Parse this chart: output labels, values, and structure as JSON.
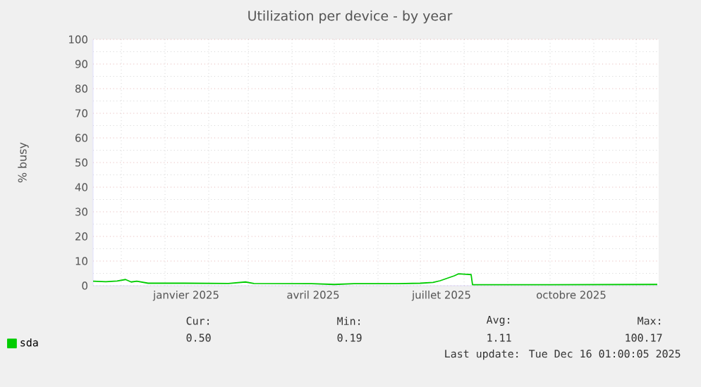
{
  "chart_data": {
    "type": "line",
    "title": "Utilization per device - by year",
    "ylabel": "% busy",
    "x": [
      "2024-11-11",
      "2024-11-20",
      "2024-11-28",
      "2024-12-04",
      "2024-12-08",
      "2024-12-12",
      "2024-12-20",
      "2025-01-15",
      "2025-02-15",
      "2025-02-27",
      "2025-03-05",
      "2025-04-15",
      "2025-05-01",
      "2025-05-15",
      "2025-06-15",
      "2025-07-01",
      "2025-07-10",
      "2025-07-15",
      "2025-07-20",
      "2025-07-25",
      "2025-07-28",
      "2025-08-03",
      "2025-08-06",
      "2025-08-07",
      "2025-10-01",
      "2025-12-16"
    ],
    "series": [
      {
        "name": "sda",
        "color": "#00cc00",
        "values": [
          1.8,
          1.6,
          1.9,
          2.5,
          1.5,
          1.8,
          1.0,
          1.0,
          0.9,
          1.5,
          0.9,
          0.8,
          0.5,
          0.8,
          0.8,
          1.0,
          1.3,
          2.0,
          3.0,
          4.0,
          4.8,
          4.6,
          4.5,
          0.4,
          0.4,
          0.5
        ]
      }
    ],
    "xlim": [
      "2024-11-11",
      "2025-12-17"
    ],
    "xticks": [
      {
        "value": "2025-01-16",
        "label": "janvier 2025"
      },
      {
        "value": "2025-04-16",
        "label": "avril 2025"
      },
      {
        "value": "2025-07-16",
        "label": "juillet 2025"
      },
      {
        "value": "2025-10-16",
        "label": "octobre 2025"
      }
    ],
    "ylim": [
      0,
      100
    ],
    "yticks": [
      0,
      10,
      20,
      30,
      40,
      50,
      60,
      70,
      80,
      90,
      100
    ],
    "grid": true,
    "legend": "bottom left",
    "marker": "none",
    "line_style": "solid",
    "annotations": [
      "Cur:",
      "Min:",
      "Avg:",
      "Max:",
      "0.50",
      "0.19",
      "1.11",
      "100.17",
      "Last update: Tue Dec 16 01:00:05 2025"
    ]
  }
}
